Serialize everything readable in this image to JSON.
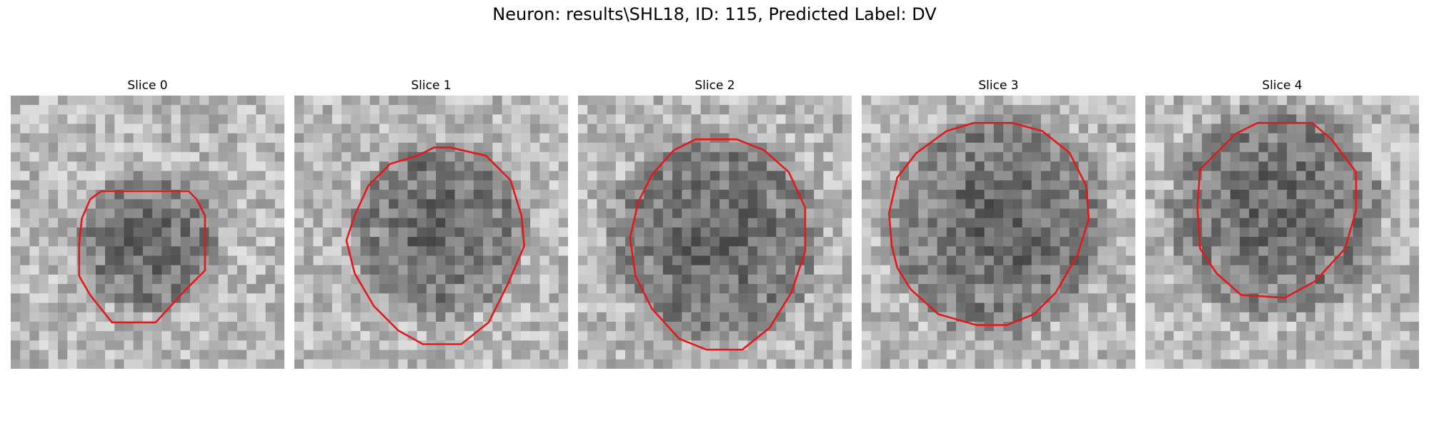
{
  "title": "Neuron: results\\SHL18, ID: 115, Predicted Label: DV",
  "panels": [
    {
      "label": "Slice 0",
      "center": [
        0.5,
        0.54
      ],
      "dark_radius": 0.24,
      "contour": [
        [
          0.43,
          0.35
        ],
        [
          0.33,
          0.35
        ],
        [
          0.29,
          0.38
        ],
        [
          0.26,
          0.45
        ],
        [
          0.25,
          0.54
        ],
        [
          0.25,
          0.66
        ],
        [
          0.29,
          0.73
        ],
        [
          0.37,
          0.83
        ],
        [
          0.53,
          0.83
        ],
        [
          0.64,
          0.71
        ],
        [
          0.71,
          0.64
        ],
        [
          0.71,
          0.44
        ],
        [
          0.68,
          0.38
        ],
        [
          0.65,
          0.35
        ],
        [
          0.51,
          0.35
        ]
      ],
      "contour_color": "#e31a1c"
    },
    {
      "label": "Slice 1",
      "center": [
        0.53,
        0.49
      ],
      "dark_radius": 0.3,
      "contour": [
        [
          0.51,
          0.19
        ],
        [
          0.45,
          0.22
        ],
        [
          0.35,
          0.25
        ],
        [
          0.27,
          0.33
        ],
        [
          0.22,
          0.44
        ],
        [
          0.19,
          0.53
        ],
        [
          0.22,
          0.65
        ],
        [
          0.29,
          0.77
        ],
        [
          0.38,
          0.86
        ],
        [
          0.47,
          0.91
        ],
        [
          0.61,
          0.91
        ],
        [
          0.71,
          0.83
        ],
        [
          0.78,
          0.69
        ],
        [
          0.84,
          0.55
        ],
        [
          0.83,
          0.44
        ],
        [
          0.79,
          0.31
        ],
        [
          0.7,
          0.22
        ],
        [
          0.57,
          0.19
        ]
      ],
      "contour_color": "#e31a1c"
    },
    {
      "label": "Slice 2",
      "center": [
        0.5,
        0.52
      ],
      "dark_radius": 0.36,
      "contour": [
        [
          0.43,
          0.16
        ],
        [
          0.35,
          0.2
        ],
        [
          0.27,
          0.29
        ],
        [
          0.22,
          0.39
        ],
        [
          0.19,
          0.52
        ],
        [
          0.21,
          0.66
        ],
        [
          0.27,
          0.78
        ],
        [
          0.37,
          0.89
        ],
        [
          0.47,
          0.93
        ],
        [
          0.6,
          0.93
        ],
        [
          0.7,
          0.85
        ],
        [
          0.78,
          0.72
        ],
        [
          0.83,
          0.57
        ],
        [
          0.83,
          0.41
        ],
        [
          0.77,
          0.28
        ],
        [
          0.68,
          0.2
        ],
        [
          0.58,
          0.16
        ]
      ],
      "contour_color": "#e31a1c"
    },
    {
      "label": "Slice 3",
      "center": [
        0.5,
        0.47
      ],
      "dark_radius": 0.38,
      "contour": [
        [
          0.41,
          0.1
        ],
        [
          0.31,
          0.13
        ],
        [
          0.2,
          0.21
        ],
        [
          0.13,
          0.3
        ],
        [
          0.1,
          0.43
        ],
        [
          0.11,
          0.55
        ],
        [
          0.13,
          0.63
        ],
        [
          0.18,
          0.71
        ],
        [
          0.28,
          0.8
        ],
        [
          0.42,
          0.84
        ],
        [
          0.53,
          0.84
        ],
        [
          0.63,
          0.8
        ],
        [
          0.71,
          0.72
        ],
        [
          0.79,
          0.58
        ],
        [
          0.83,
          0.45
        ],
        [
          0.82,
          0.33
        ],
        [
          0.76,
          0.21
        ],
        [
          0.66,
          0.13
        ],
        [
          0.55,
          0.1
        ]
      ],
      "contour_color": "#e31a1c"
    },
    {
      "label": "Slice 4",
      "center": [
        0.48,
        0.42
      ],
      "dark_radius": 0.36,
      "contour": [
        [
          0.41,
          0.1
        ],
        [
          0.33,
          0.14
        ],
        [
          0.26,
          0.21
        ],
        [
          0.2,
          0.27
        ],
        [
          0.19,
          0.41
        ],
        [
          0.2,
          0.56
        ],
        [
          0.26,
          0.65
        ],
        [
          0.35,
          0.73
        ],
        [
          0.51,
          0.74
        ],
        [
          0.62,
          0.68
        ],
        [
          0.73,
          0.56
        ],
        [
          0.77,
          0.42
        ],
        [
          0.77,
          0.28
        ],
        [
          0.68,
          0.16
        ],
        [
          0.61,
          0.1
        ],
        [
          0.52,
          0.1
        ]
      ],
      "contour_color": "#e31a1c"
    }
  ]
}
